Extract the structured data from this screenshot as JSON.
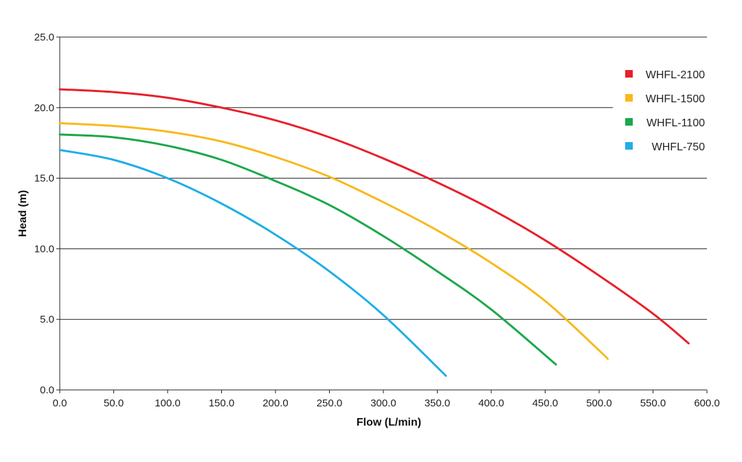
{
  "chart_data": {
    "type": "line",
    "title": "",
    "xlabel": "Flow (L/min)",
    "ylabel": "Head (m)",
    "xlim": [
      0,
      600
    ],
    "ylim": [
      0,
      25
    ],
    "xticks": [
      "0.0",
      "50.0",
      "100.0",
      "150.0",
      "200.0",
      "250.0",
      "300.0",
      "350.0",
      "400.0",
      "450.0",
      "500.0",
      "550.0",
      "600.0"
    ],
    "yticks": [
      "0.0",
      "5.0",
      "10.0",
      "15.0",
      "20.0",
      "25.0"
    ],
    "grid": "horizontal",
    "legend_position": "top-right",
    "series": [
      {
        "name": "WHFL-2100",
        "color": "#e8202a",
        "x": [
          0,
          50,
          100,
          150,
          200,
          250,
          300,
          350,
          400,
          450,
          500,
          550,
          583
        ],
        "y": [
          21.3,
          21.1,
          20.7,
          20.0,
          19.1,
          17.9,
          16.4,
          14.7,
          12.8,
          10.6,
          8.1,
          5.4,
          3.3
        ]
      },
      {
        "name": "WHFL-1500",
        "color": "#f8b91c",
        "x": [
          0,
          50,
          100,
          150,
          200,
          250,
          300,
          350,
          400,
          450,
          500,
          508
        ],
        "y": [
          18.9,
          18.7,
          18.3,
          17.6,
          16.5,
          15.1,
          13.3,
          11.3,
          9.0,
          6.3,
          2.8,
          2.2
        ]
      },
      {
        "name": "WHFL-1100",
        "color": "#1aa84a",
        "x": [
          0,
          50,
          100,
          150,
          200,
          250,
          300,
          350,
          400,
          460
        ],
        "y": [
          18.1,
          17.9,
          17.3,
          16.3,
          14.8,
          13.1,
          10.9,
          8.4,
          5.7,
          1.8
        ]
      },
      {
        "name": "WHFL-750",
        "color": "#1eaee8",
        "x": [
          0,
          50,
          100,
          150,
          200,
          250,
          300,
          358
        ],
        "y": [
          17.0,
          16.3,
          15.0,
          13.2,
          11.0,
          8.4,
          5.3,
          1.0
        ]
      }
    ]
  }
}
